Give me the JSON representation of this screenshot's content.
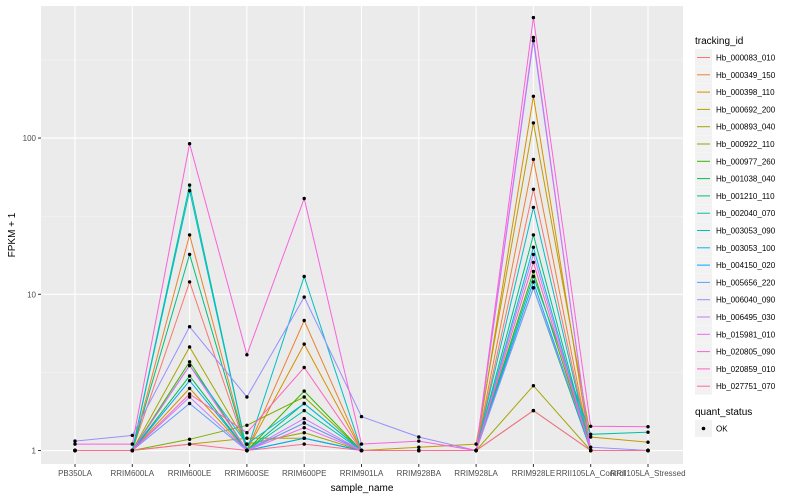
{
  "chart_data": {
    "type": "line",
    "xlabel": "sample_name",
    "ylabel": "FPKM + 1",
    "y_scale": "log10",
    "ylim": [
      0.82,
      700
    ],
    "grid": true,
    "y_ticks": [
      1,
      10,
      100
    ],
    "y_tick_labels": [
      "1",
      "10",
      "100"
    ],
    "categories": [
      "PB350LA",
      "RRIM600LA",
      "RRIM600LE",
      "RRIM600SE",
      "RRIM600PE",
      "RRIM901LA",
      "RRIM928BA",
      "RRIM928LA",
      "RRIM928LE",
      "RRII105LA_Control",
      "RRII105LA_Stressed"
    ],
    "legend": {
      "title": "tracking_id",
      "position": "right"
    },
    "shape_legend": {
      "title": "quant_status",
      "items": [
        {
          "label": "OK"
        }
      ]
    },
    "series": [
      {
        "name": "Hb_000083_010",
        "color": "#F8766D",
        "values": [
          1.0,
          1.0,
          12.0,
          1.0,
          1.5,
          1.0,
          1.0,
          1.0,
          47.0,
          1.0,
          1.0
        ]
      },
      {
        "name": "Hb_000349_150",
        "color": "#EA8331",
        "values": [
          1.0,
          1.0,
          24.0,
          1.0,
          6.8,
          1.0,
          1.0,
          1.0,
          73.0,
          1.0,
          1.0
        ]
      },
      {
        "name": "Hb_000398_110",
        "color": "#D89000",
        "values": [
          1.0,
          1.0,
          2.5,
          1.0,
          4.8,
          1.0,
          1.0,
          1.0,
          185.0,
          1.0,
          1.0
        ]
      },
      {
        "name": "Hb_000692_200",
        "color": "#C09B00",
        "values": [
          1.0,
          1.0,
          1.1,
          1.2,
          1.2,
          1.0,
          1.05,
          1.1,
          125.0,
          1.22,
          1.13
        ]
      },
      {
        "name": "Hb_000893_040",
        "color": "#A3A500",
        "values": [
          1.0,
          1.0,
          4.6,
          1.1,
          1.3,
          1.0,
          1.0,
          1.0,
          2.6,
          1.0,
          1.0
        ]
      },
      {
        "name": "Hb_000922_110",
        "color": "#7CAE00",
        "values": [
          1.0,
          1.0,
          1.18,
          1.45,
          2.2,
          1.0,
          1.0,
          1.0,
          1.8,
          1.0,
          1.0
        ]
      },
      {
        "name": "Hb_000977_260",
        "color": "#39B600",
        "values": [
          1.0,
          1.0,
          3.7,
          1.0,
          2.4,
          1.0,
          1.0,
          1.0,
          14.0,
          1.0,
          1.0
        ]
      },
      {
        "name": "Hb_001038_040",
        "color": "#00BB4E",
        "values": [
          1.0,
          1.0,
          3.0,
          1.0,
          1.2,
          1.0,
          1.0,
          1.0,
          11.0,
          1.0,
          1.0
        ]
      },
      {
        "name": "Hb_001210_110",
        "color": "#00BF7D",
        "values": [
          1.0,
          1.0,
          18.0,
          1.0,
          2.0,
          1.0,
          1.0,
          1.0,
          24.0,
          1.0,
          1.0
        ]
      },
      {
        "name": "Hb_002040_070",
        "color": "#00C1A3",
        "values": [
          1.0,
          1.0,
          50.0,
          1.0,
          1.8,
          1.0,
          1.0,
          1.0,
          13.0,
          1.27,
          1.31
        ]
      },
      {
        "name": "Hb_003053_090",
        "color": "#00BFC4",
        "values": [
          1.0,
          1.0,
          46.0,
          1.0,
          13.0,
          1.0,
          1.0,
          1.0,
          36.0,
          1.0,
          1.0
        ]
      },
      {
        "name": "Hb_003053_100",
        "color": "#00B8E7",
        "values": [
          1.0,
          1.0,
          3.5,
          1.1,
          2.0,
          1.0,
          1.0,
          1.0,
          20.0,
          1.0,
          1.0
        ]
      },
      {
        "name": "Hb_004150_020",
        "color": "#00A9FF",
        "values": [
          1.0,
          1.0,
          2.8,
          1.0,
          1.2,
          1.0,
          1.0,
          1.0,
          12.0,
          1.0,
          1.0
        ]
      },
      {
        "name": "Hb_005656_220",
        "color": "#619CFF",
        "values": [
          1.0,
          1.0,
          2.0,
          1.0,
          1.5,
          1.0,
          1.0,
          1.0,
          420.0,
          1.0,
          1.0
        ]
      },
      {
        "name": "Hb_006040_090",
        "color": "#9590FF",
        "values": [
          1.15,
          1.25,
          6.2,
          2.2,
          9.6,
          1.65,
          1.22,
          1.0,
          11.0,
          1.05,
          1.0
        ]
      },
      {
        "name": "Hb_006495_030",
        "color": "#C77CFF",
        "values": [
          1.0,
          1.0,
          2.2,
          1.0,
          1.6,
          1.0,
          1.0,
          1.0,
          18.0,
          1.0,
          1.0
        ]
      },
      {
        "name": "Hb_015981_010",
        "color": "#E76BF3",
        "values": [
          1.0,
          1.0,
          3.5,
          1.0,
          1.4,
          1.0,
          1.0,
          1.0,
          440.0,
          1.0,
          1.0
        ]
      },
      {
        "name": "Hb_020805_090",
        "color": "#FA62DB",
        "values": [
          1.1,
          1.1,
          92.0,
          4.1,
          41.0,
          1.1,
          1.15,
          1.0,
          590.0,
          1.43,
          1.42
        ]
      },
      {
        "name": "Hb_020859_010",
        "color": "#FF62BC",
        "values": [
          1.0,
          1.0,
          2.3,
          1.3,
          3.4,
          1.0,
          1.0,
          1.0,
          16.0,
          1.0,
          1.0
        ]
      },
      {
        "name": "Hb_027751_070",
        "color": "#FF6C91",
        "values": [
          1.0,
          1.0,
          1.1,
          1.0,
          1.1,
          1.0,
          1.0,
          1.0,
          1.8,
          1.0,
          1.0
        ]
      }
    ]
  }
}
